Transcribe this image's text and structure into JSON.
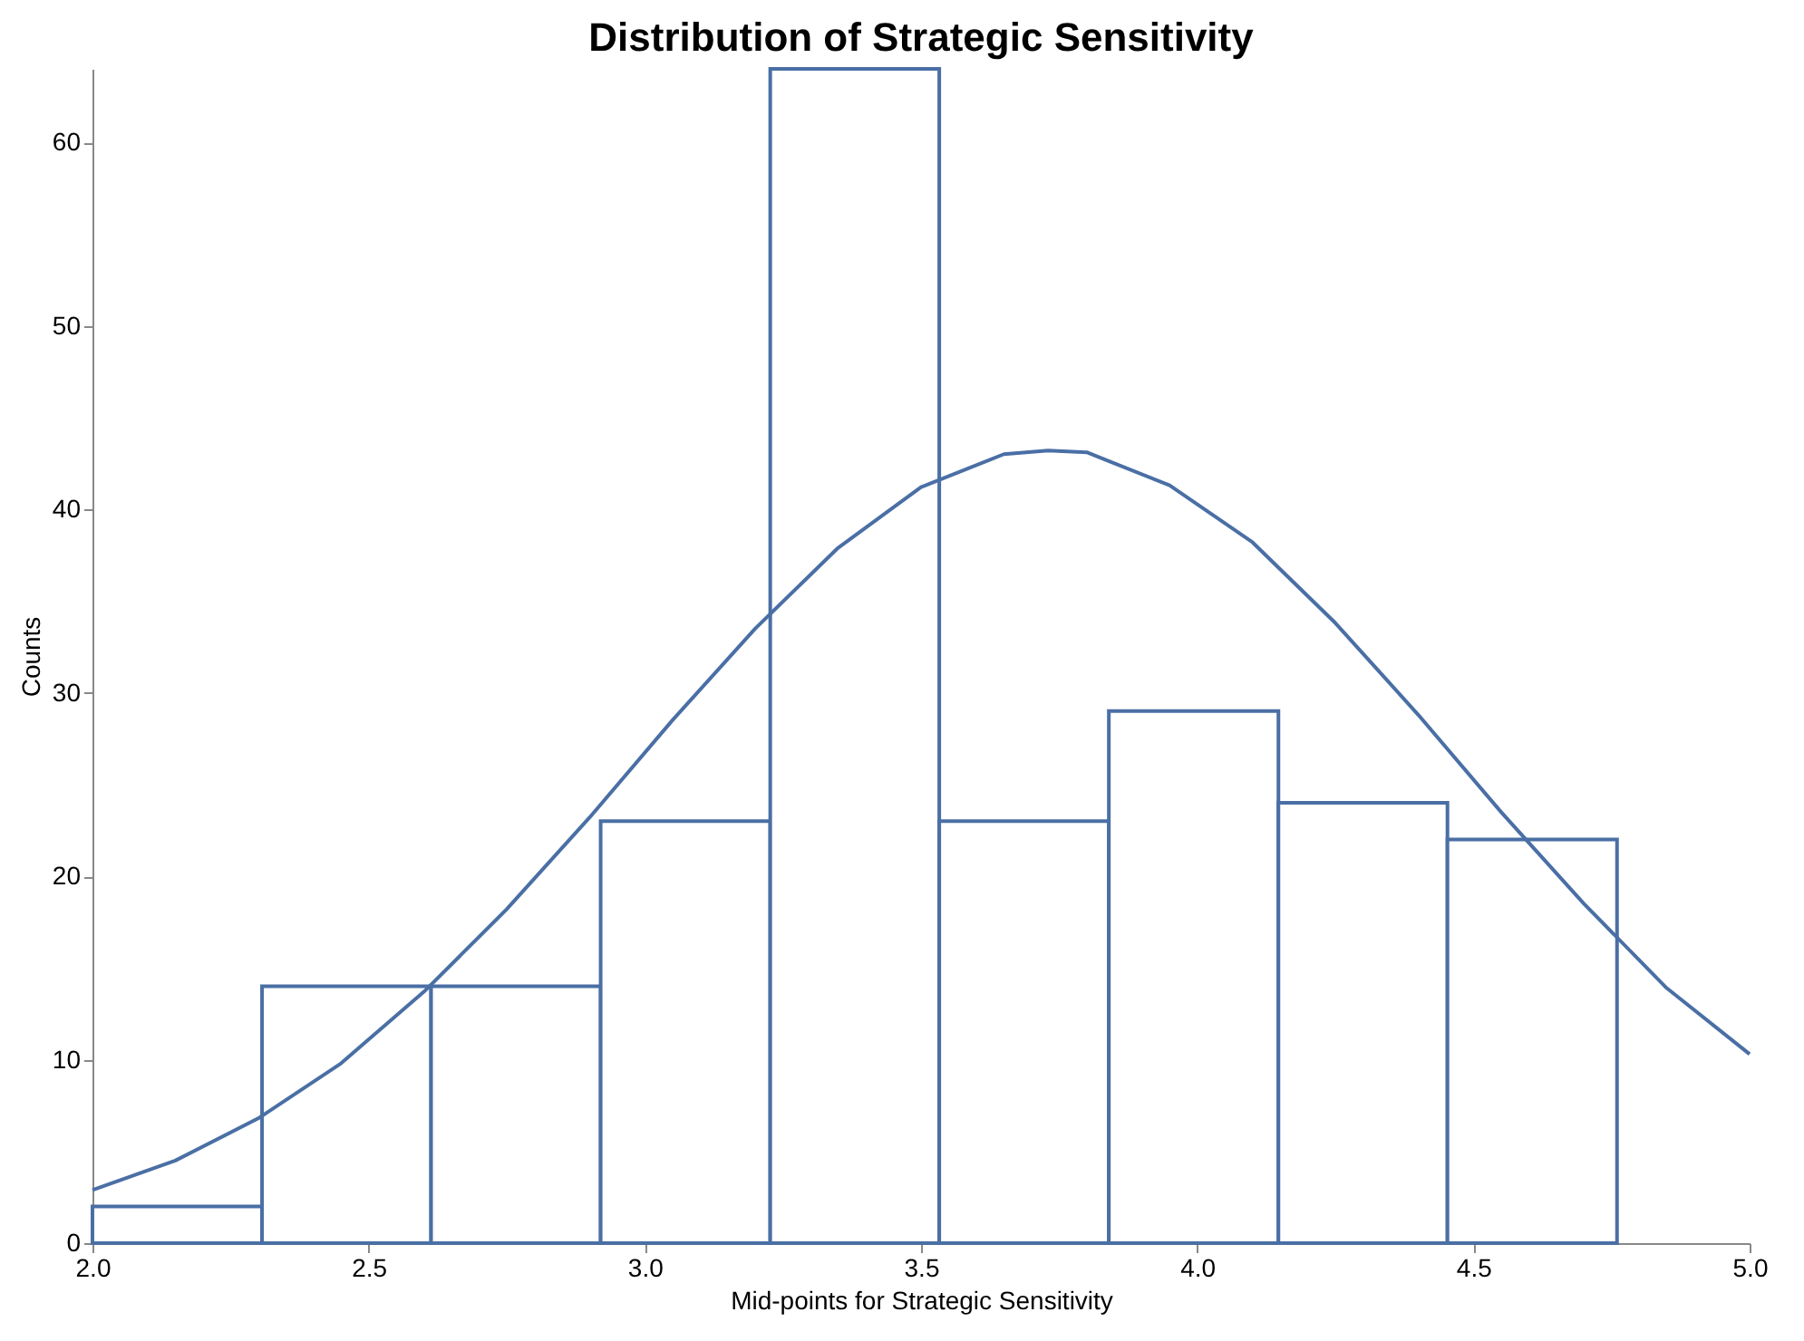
{
  "chart_data": {
    "type": "histogram",
    "title": "Distribution of Strategic Sensitivity",
    "xlabel": "Mid-points for Strategic Sensitivity",
    "ylabel": "Counts",
    "bins": [
      2.0,
      2.307,
      2.613,
      2.92,
      3.227,
      3.533,
      3.84,
      4.147,
      4.453,
      4.76
    ],
    "values": [
      2,
      14,
      14,
      23,
      64,
      23,
      29,
      24,
      22
    ],
    "color": "#4a6fa5",
    "series": [
      {
        "type": "line",
        "color": "#4a6fa5",
        "x": [
          2.0,
          2.15,
          2.3,
          2.45,
          2.6,
          2.75,
          2.9,
          3.05,
          3.2,
          3.35,
          3.5,
          3.65,
          3.73,
          3.8,
          3.95,
          4.1,
          4.25,
          4.4,
          4.55,
          4.7,
          4.85,
          5.0
        ],
        "values": [
          2.9,
          4.5,
          6.8,
          9.8,
          13.7,
          18.2,
          23.2,
          28.5,
          33.5,
          37.9,
          41.2,
          43.0,
          43.2,
          43.1,
          41.3,
          38.2,
          33.8,
          28.8,
          23.5,
          18.5,
          13.9,
          10.3
        ]
      }
    ],
    "xlim": [
      2.0,
      5.0
    ],
    "xticks": [
      {
        "value": 2,
        "label": "2.0"
      },
      {
        "value": 2.5,
        "label": "2.5"
      },
      {
        "value": 3,
        "label": "3.0"
      },
      {
        "value": 3.5,
        "label": "3.5"
      },
      {
        "value": 4,
        "label": "4.0"
      },
      {
        "value": 4.5,
        "label": "4.5"
      },
      {
        "value": 5,
        "label": "5.0"
      }
    ],
    "ylim": [
      0,
      64
    ],
    "yticks": [
      0,
      10,
      20,
      30,
      40,
      50,
      60
    ],
    "grid": false
  }
}
